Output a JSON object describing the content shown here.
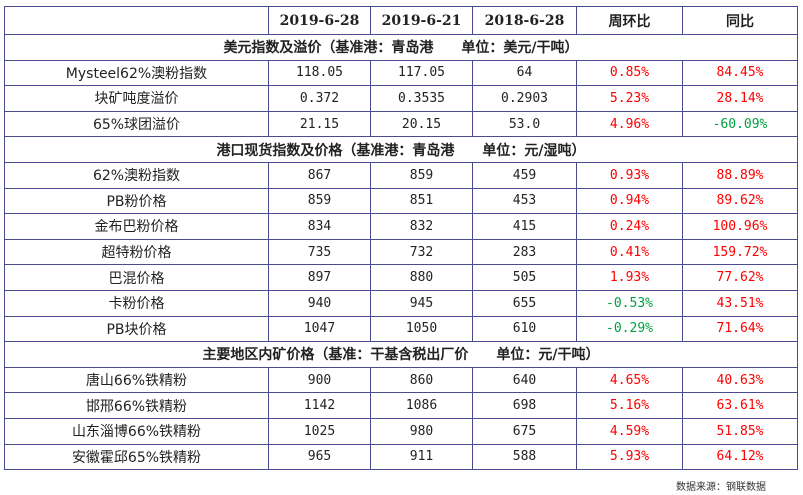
{
  "colors": {
    "positive": "#ff0000",
    "negative": "#00a040",
    "border": "#4b4b8f"
  },
  "header": [
    "",
    "2019-6-28",
    "2019-6-21",
    "2018-6-28",
    "周环比",
    "同比"
  ],
  "sections": [
    {
      "title": "美元指数及溢价（基准港：青岛港　　单位：美元/干吨）",
      "rows": [
        {
          "name": "Mysteel62%澳粉指数",
          "v1": "118.05",
          "v2": "117.05",
          "v3": "64",
          "wow": "0.85%",
          "yoy": "84.45%"
        },
        {
          "name": "块矿吨度溢价",
          "v1": "0.372",
          "v2": "0.3535",
          "v3": "0.2903",
          "wow": "5.23%",
          "yoy": "28.14%"
        },
        {
          "name": "65%球团溢价",
          "v1": "21.15",
          "v2": "20.15",
          "v3": "53.0",
          "wow": "4.96%",
          "yoy": "-60.09%"
        }
      ]
    },
    {
      "title": "港口现货指数及价格（基准港：青岛港　　单位：元/湿吨）",
      "rows": [
        {
          "name": "62%澳粉指数",
          "v1": "867",
          "v2": "859",
          "v3": "459",
          "wow": "0.93%",
          "yoy": "88.89%"
        },
        {
          "name": "PB粉价格",
          "v1": "859",
          "v2": "851",
          "v3": "453",
          "wow": "0.94%",
          "yoy": "89.62%"
        },
        {
          "name": "金布巴粉价格",
          "v1": "834",
          "v2": "832",
          "v3": "415",
          "wow": "0.24%",
          "yoy": "100.96%"
        },
        {
          "name": "超特粉价格",
          "v1": "735",
          "v2": "732",
          "v3": "283",
          "wow": "0.41%",
          "yoy": "159.72%"
        },
        {
          "name": "巴混价格",
          "v1": "897",
          "v2": "880",
          "v3": "505",
          "wow": "1.93%",
          "yoy": "77.62%"
        },
        {
          "name": "卡粉价格",
          "v1": "940",
          "v2": "945",
          "v3": "655",
          "wow": "-0.53%",
          "yoy": "43.51%"
        },
        {
          "name": "PB块价格",
          "v1": "1047",
          "v2": "1050",
          "v3": "610",
          "wow": "-0.29%",
          "yoy": "71.64%"
        }
      ]
    },
    {
      "title": "主要地区内矿价格（基准：干基含税出厂价　　单位：元/干吨）",
      "rows": [
        {
          "name": "唐山66%铁精粉",
          "v1": "900",
          "v2": "860",
          "v3": "640",
          "wow": "4.65%",
          "yoy": "40.63%"
        },
        {
          "name": "邯邢66%铁精粉",
          "v1": "1142",
          "v2": "1086",
          "v3": "698",
          "wow": "5.16%",
          "yoy": "63.61%"
        },
        {
          "name": "山东淄博66%铁精粉",
          "v1": "1025",
          "v2": "980",
          "v3": "675",
          "wow": "4.59%",
          "yoy": "51.85%"
        },
        {
          "name": "安徽霍邱65%铁精粉",
          "v1": "965",
          "v2": "911",
          "v3": "588",
          "wow": "5.93%",
          "yoy": "64.12%"
        }
      ]
    }
  ],
  "source": "数据来源：钢联数据"
}
